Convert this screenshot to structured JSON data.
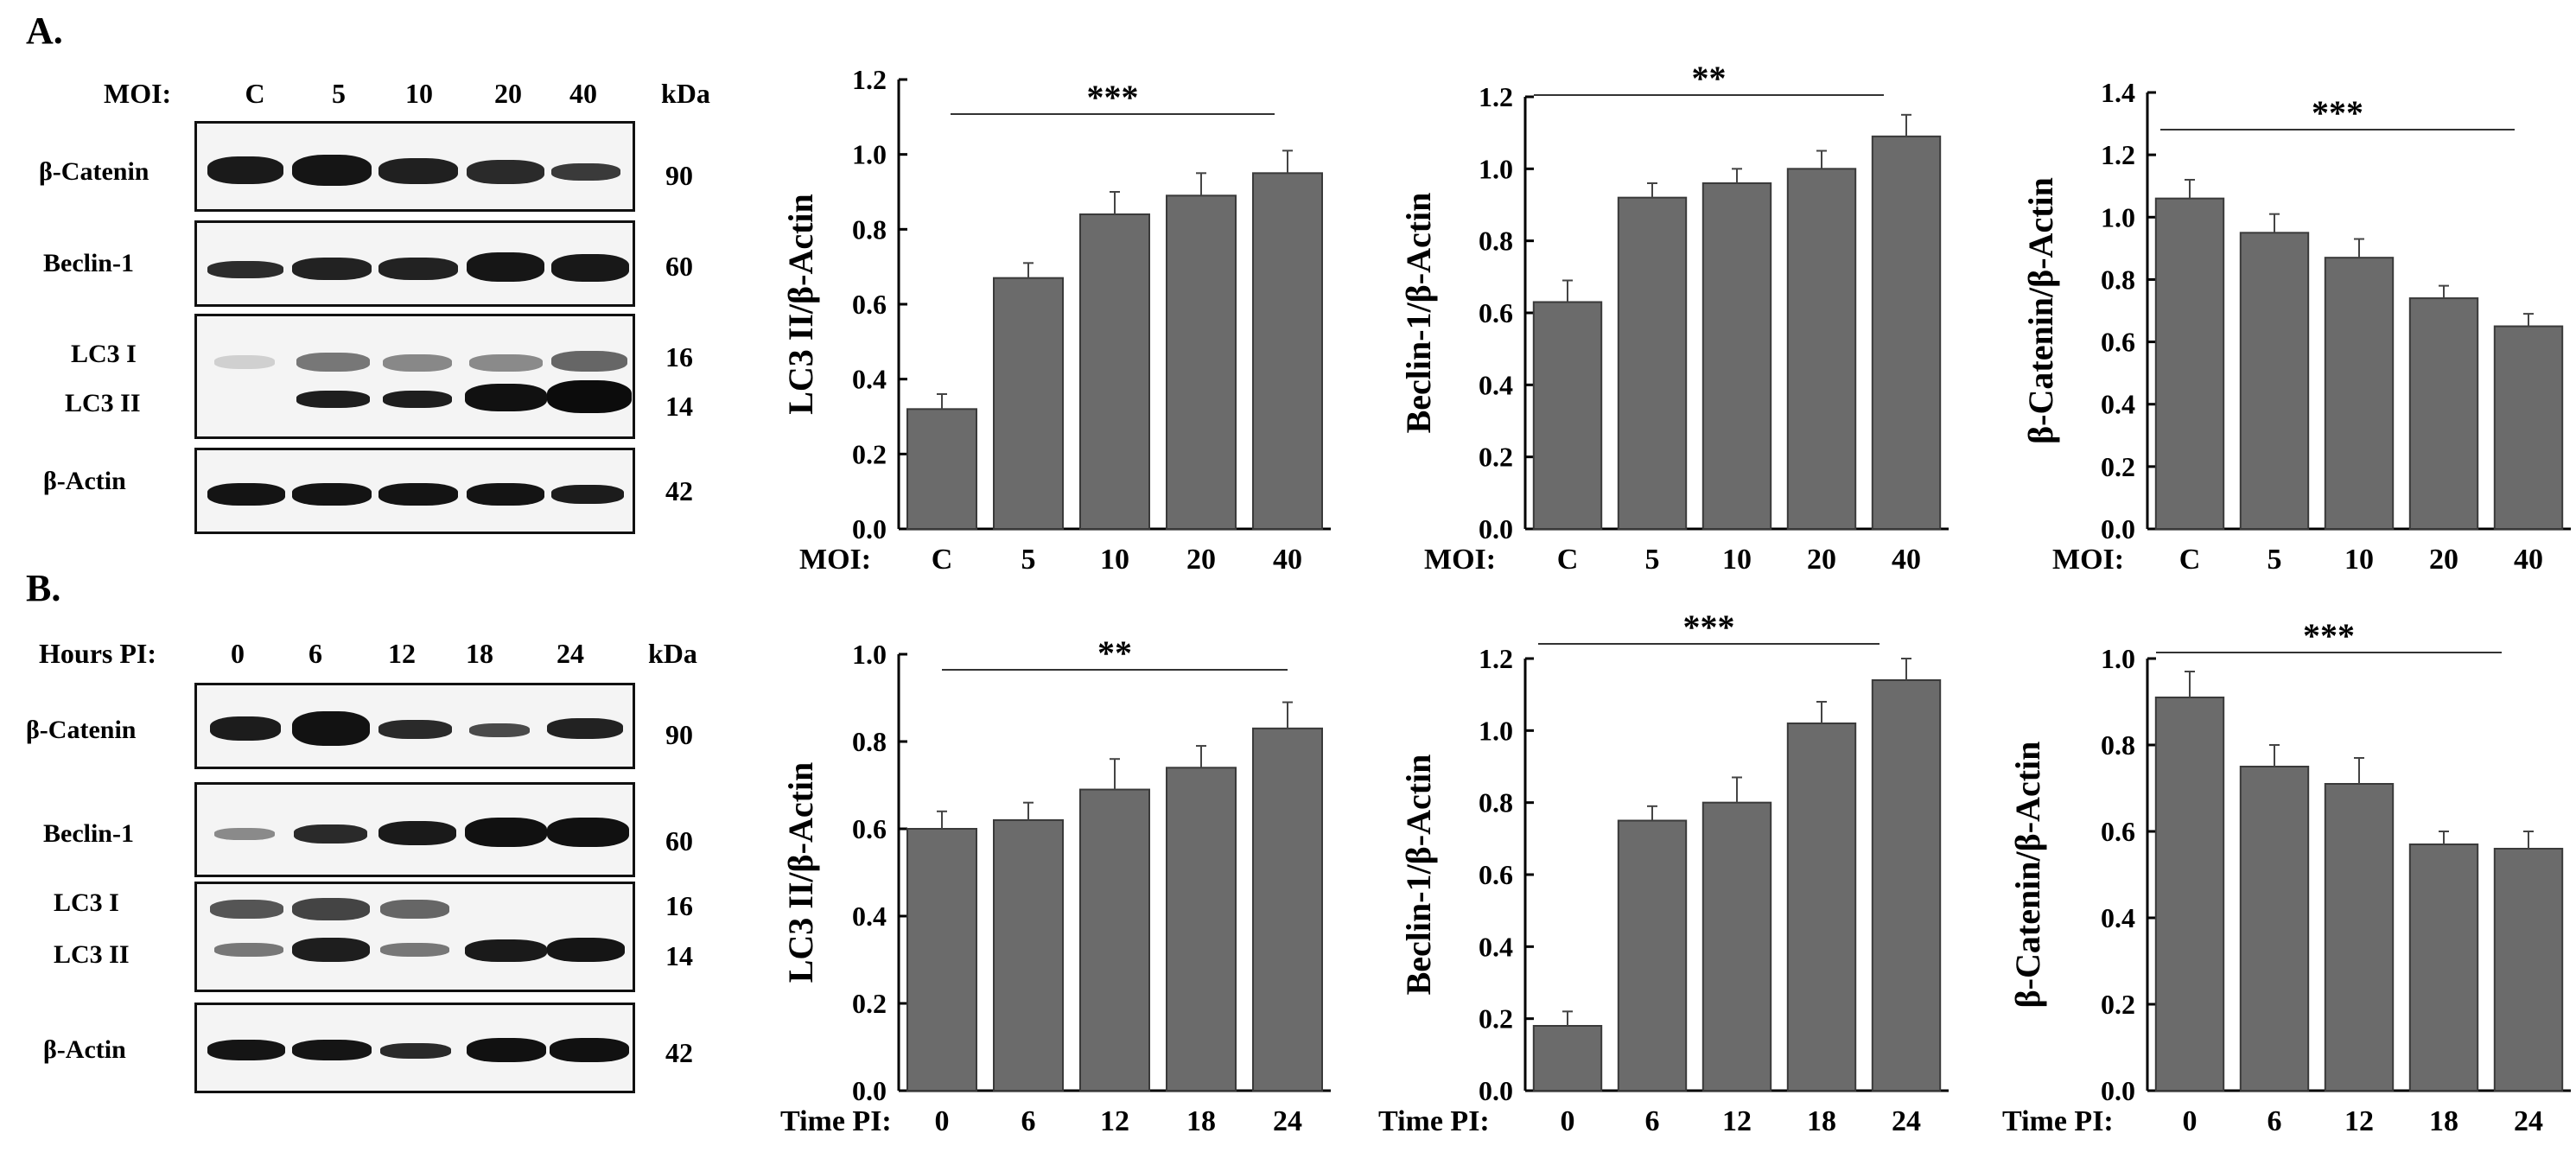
{
  "panelA": {
    "letter": "A.",
    "blot": {
      "header_label": "MOI:",
      "lanes": [
        "C",
        "5",
        "10",
        "20",
        "40"
      ],
      "kda_label": "kDa",
      "proteins": [
        {
          "name": "β-Catenin",
          "kda": "90"
        },
        {
          "name": "Beclin-1",
          "kda": "60"
        },
        {
          "name": "LC3 I",
          "kda": "16"
        },
        {
          "name": "LC3 II",
          "kda": "14"
        },
        {
          "name": "β-Actin",
          "kda": "42"
        }
      ]
    }
  },
  "panelB": {
    "letter": "B.",
    "blot": {
      "header_label": "Hours PI:",
      "lanes": [
        "0",
        "6",
        "12",
        "18",
        "24"
      ],
      "kda_label": "kDa",
      "proteins": [
        {
          "name": "β-Catenin",
          "kda": "90"
        },
        {
          "name": "Beclin-1",
          "kda": "60"
        },
        {
          "name": "LC3 I",
          "kda": "16"
        },
        {
          "name": "LC3 II",
          "kda": "14"
        },
        {
          "name": "β-Actin",
          "kda": "42"
        }
      ]
    }
  },
  "chart_data": [
    {
      "type": "bar",
      "id": "A1",
      "title": "",
      "xlabel_prefix": "MOI:",
      "ylabel": "LC3 II/β-Actin",
      "categories": [
        "C",
        "5",
        "10",
        "20",
        "40"
      ],
      "values": [
        0.32,
        0.67,
        0.84,
        0.89,
        0.95
      ],
      "errors": [
        0.04,
        0.04,
        0.06,
        0.06,
        0.06
      ],
      "ylim": [
        0,
        1.2
      ],
      "yticks": [
        "0.0",
        "0.2",
        "0.4",
        "0.6",
        "0.8",
        "1.0",
        "1.2"
      ],
      "significance": "***"
    },
    {
      "type": "bar",
      "id": "A2",
      "title": "",
      "xlabel_prefix": "MOI:",
      "ylabel": "Beclin-1/β-Actin",
      "categories": [
        "C",
        "5",
        "10",
        "20",
        "40"
      ],
      "values": [
        0.63,
        0.92,
        0.96,
        1.0,
        1.09
      ],
      "errors": [
        0.06,
        0.04,
        0.04,
        0.05,
        0.06
      ],
      "ylim": [
        0,
        1.2
      ],
      "yticks": [
        "0.0",
        "0.2",
        "0.4",
        "0.6",
        "0.8",
        "1.0",
        "1.2"
      ],
      "significance": "**"
    },
    {
      "type": "bar",
      "id": "A3",
      "title": "",
      "xlabel_prefix": "MOI:",
      "ylabel": "β-Catenin/β-Actin",
      "categories": [
        "C",
        "5",
        "10",
        "20",
        "40"
      ],
      "values": [
        1.06,
        0.95,
        0.87,
        0.74,
        0.65
      ],
      "errors": [
        0.06,
        0.06,
        0.06,
        0.04,
        0.04
      ],
      "ylim": [
        0,
        1.4
      ],
      "yticks": [
        "0.0",
        "0.2",
        "0.4",
        "0.6",
        "0.8",
        "1.0",
        "1.2",
        "1.4"
      ],
      "significance": "***"
    },
    {
      "type": "bar",
      "id": "B1",
      "title": "",
      "xlabel_prefix": "Time PI:",
      "ylabel": "LC3 II/β-Actin",
      "categories": [
        "0",
        "6",
        "12",
        "18",
        "24"
      ],
      "values": [
        0.6,
        0.62,
        0.69,
        0.74,
        0.83
      ],
      "errors": [
        0.04,
        0.04,
        0.07,
        0.05,
        0.06
      ],
      "ylim": [
        0,
        1.0
      ],
      "yticks": [
        "0.0",
        "0.2",
        "0.4",
        "0.6",
        "0.8",
        "1.0"
      ],
      "significance": "**"
    },
    {
      "type": "bar",
      "id": "B2",
      "title": "",
      "xlabel_prefix": "Time PI:",
      "ylabel": "Beclin-1/β-Actin",
      "categories": [
        "0",
        "6",
        "12",
        "18",
        "24"
      ],
      "values": [
        0.18,
        0.75,
        0.8,
        1.02,
        1.14
      ],
      "errors": [
        0.04,
        0.04,
        0.07,
        0.06,
        0.06
      ],
      "ylim": [
        0,
        1.2
      ],
      "yticks": [
        "0.0",
        "0.2",
        "0.4",
        "0.6",
        "0.8",
        "1.0",
        "1.2"
      ],
      "significance": "***"
    },
    {
      "type": "bar",
      "id": "B3",
      "title": "",
      "xlabel_prefix": "Time PI:",
      "ylabel": "β-Catenin/β-Actin",
      "categories": [
        "0",
        "6",
        "12",
        "18",
        "24"
      ],
      "values": [
        0.91,
        0.75,
        0.71,
        0.57,
        0.56
      ],
      "errors": [
        0.06,
        0.05,
        0.06,
        0.03,
        0.04
      ],
      "ylim": [
        0,
        1.0
      ],
      "yticks": [
        "0.0",
        "0.2",
        "0.4",
        "0.6",
        "0.8",
        "1.0"
      ],
      "significance": "***"
    }
  ]
}
